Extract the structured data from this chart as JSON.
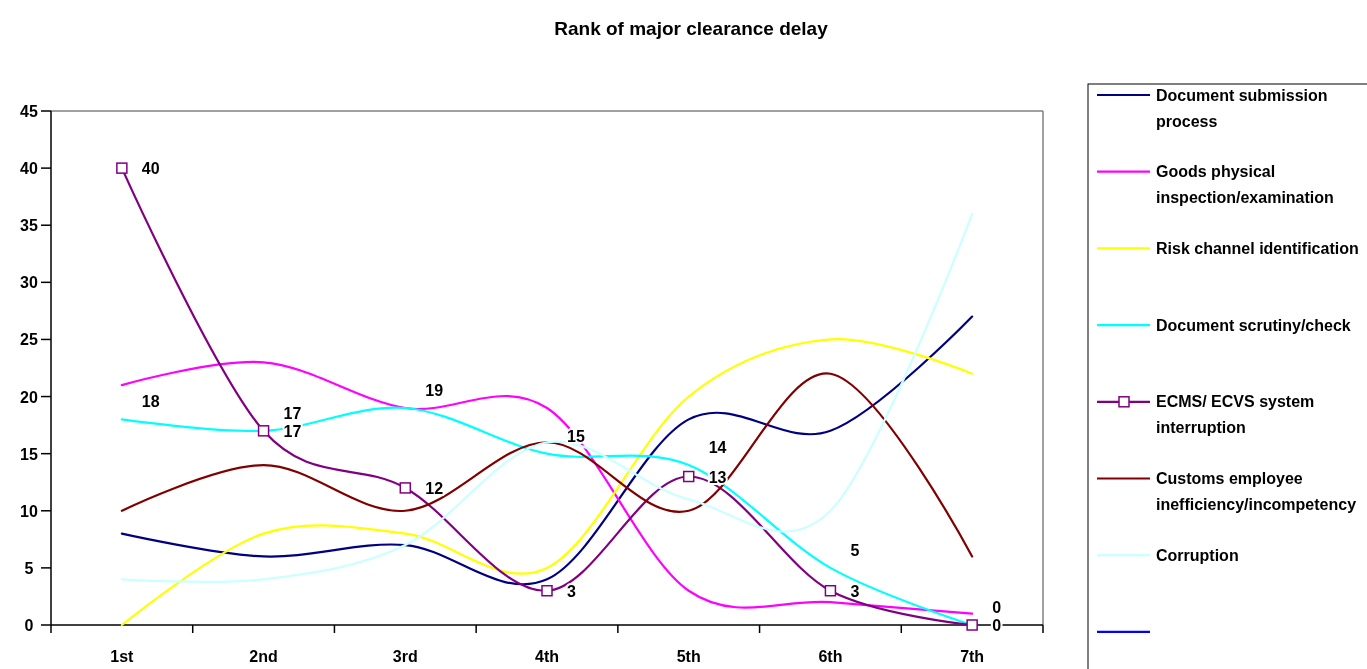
{
  "chart_data": {
    "type": "line",
    "title": "Rank of major clearance delay",
    "categories": [
      "1st",
      "2nd",
      "3rd",
      "4th",
      "5th",
      "6th",
      "7th"
    ],
    "ylim": [
      0,
      45
    ],
    "yticks": [
      0,
      5,
      10,
      15,
      20,
      25,
      30,
      35,
      40,
      45
    ],
    "grid": false,
    "legend": "right",
    "series": [
      {
        "name": "Document submission process",
        "color": "#000080",
        "values": [
          8,
          6,
          7,
          4,
          18,
          17,
          27
        ]
      },
      {
        "name": "Goods physical inspection/examination",
        "color": "#ff00ff",
        "values": [
          21,
          23,
          19,
          19,
          3,
          2,
          1
        ]
      },
      {
        "name": "Risk channel identification",
        "color": "#ffff00",
        "values": [
          0,
          8,
          8,
          5,
          20,
          25,
          22
        ]
      },
      {
        "name": "Document scrutiny/check",
        "color": "#00ffff",
        "values": [
          18,
          17,
          19,
          15,
          14,
          5,
          0
        ],
        "value_labels": [
          "18",
          "17",
          "19",
          "15",
          "14",
          "5",
          "0"
        ]
      },
      {
        "name": "ECMS/ ECVS system interruption",
        "color": "#800080",
        "marker": "square",
        "values": [
          40,
          17,
          12,
          3,
          13,
          3,
          0
        ],
        "value_labels": [
          "40",
          "17",
          "12",
          "3",
          "13",
          "3",
          "0"
        ]
      },
      {
        "name": "Customs employee inefficiency/incompetency",
        "color": "#800000",
        "values": [
          10,
          14,
          10,
          16,
          10,
          22,
          6
        ]
      },
      {
        "name": "Corruption",
        "color": "#ccffff",
        "values": [
          4,
          4,
          7,
          16,
          11,
          10,
          36
        ]
      },
      {
        "color": "#0000ff",
        "values": [
          null,
          null,
          null,
          null,
          null,
          null,
          null
        ]
      }
    ]
  }
}
